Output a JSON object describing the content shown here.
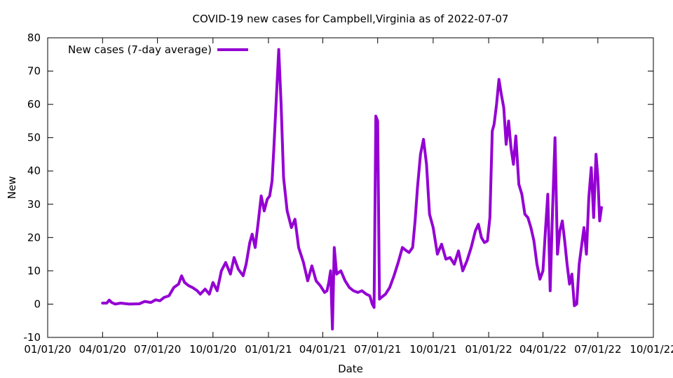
{
  "chart_data": {
    "type": "line",
    "title": "COVID-19 new cases for Campbell,Virginia as of 2022-07-07",
    "xlabel": "Date",
    "ylabel": "New",
    "xlim": [
      "2020-01-01",
      "2022-10-01"
    ],
    "ylim": [
      -10,
      80
    ],
    "grid": false,
    "legend_position": "top-left",
    "x_ticks": [
      {
        "date": "2020-01-01",
        "label": "01/01/20"
      },
      {
        "date": "2020-04-01",
        "label": "04/01/20"
      },
      {
        "date": "2020-07-01",
        "label": "07/01/20"
      },
      {
        "date": "2020-10-01",
        "label": "10/01/20"
      },
      {
        "date": "2021-01-01",
        "label": "01/01/21"
      },
      {
        "date": "2021-04-01",
        "label": "04/01/21"
      },
      {
        "date": "2021-07-01",
        "label": "07/01/21"
      },
      {
        "date": "2021-10-01",
        "label": "10/01/21"
      },
      {
        "date": "2022-01-01",
        "label": "01/01/22"
      },
      {
        "date": "2022-04-01",
        "label": "04/01/22"
      },
      {
        "date": "2022-07-01",
        "label": "07/01/22"
      },
      {
        "date": "2022-10-01",
        "label": "10/01/22"
      }
    ],
    "y_ticks": [
      -10,
      0,
      10,
      20,
      30,
      40,
      50,
      60,
      70,
      80
    ],
    "series": [
      {
        "name": "New cases (7-day average)",
        "color": "#9400d3",
        "x": [
          "2020-04-01",
          "2020-04-08",
          "2020-04-12",
          "2020-04-16",
          "2020-04-22",
          "2020-05-01",
          "2020-05-15",
          "2020-06-01",
          "2020-06-10",
          "2020-06-20",
          "2020-06-28",
          "2020-07-05",
          "2020-07-12",
          "2020-07-20",
          "2020-07-28",
          "2020-08-05",
          "2020-08-10",
          "2020-08-15",
          "2020-08-22",
          "2020-08-28",
          "2020-09-05",
          "2020-09-10",
          "2020-09-18",
          "2020-09-25",
          "2020-10-01",
          "2020-10-08",
          "2020-10-15",
          "2020-10-22",
          "2020-10-30",
          "2020-11-05",
          "2020-11-12",
          "2020-11-20",
          "2020-11-25",
          "2020-12-01",
          "2020-12-05",
          "2020-12-10",
          "2020-12-15",
          "2020-12-20",
          "2020-12-25",
          "2020-12-30",
          "2021-01-03",
          "2021-01-07",
          "2021-01-10",
          "2021-01-14",
          "2021-01-18",
          "2021-01-22",
          "2021-01-26",
          "2021-02-01",
          "2021-02-08",
          "2021-02-14",
          "2021-02-20",
          "2021-02-28",
          "2021-03-07",
          "2021-03-14",
          "2021-03-21",
          "2021-03-28",
          "2021-04-04",
          "2021-04-08",
          "2021-04-11",
          "2021-04-14",
          "2021-04-17",
          "2021-04-20",
          "2021-04-24",
          "2021-05-01",
          "2021-05-08",
          "2021-05-15",
          "2021-05-22",
          "2021-05-29",
          "2021-06-05",
          "2021-06-12",
          "2021-06-18",
          "2021-06-22",
          "2021-06-25",
          "2021-06-28",
          "2021-07-01",
          "2021-07-04",
          "2021-07-07",
          "2021-07-14",
          "2021-07-21",
          "2021-07-28",
          "2021-08-04",
          "2021-08-11",
          "2021-08-18",
          "2021-08-22",
          "2021-08-28",
          "2021-09-01",
          "2021-09-05",
          "2021-09-10",
          "2021-09-15",
          "2021-09-20",
          "2021-09-25",
          "2021-10-01",
          "2021-10-08",
          "2021-10-15",
          "2021-10-22",
          "2021-10-29",
          "2021-11-05",
          "2021-11-12",
          "2021-11-19",
          "2021-11-26",
          "2021-12-03",
          "2021-12-10",
          "2021-12-15",
          "2021-12-20",
          "2021-12-25",
          "2021-12-30",
          "2022-01-03",
          "2022-01-07",
          "2022-01-10",
          "2022-01-14",
          "2022-01-18",
          "2022-01-22",
          "2022-01-26",
          "2022-01-30",
          "2022-02-03",
          "2022-02-07",
          "2022-02-11",
          "2022-02-15",
          "2022-02-20",
          "2022-02-25",
          "2022-03-02",
          "2022-03-07",
          "2022-03-12",
          "2022-03-17",
          "2022-03-22",
          "2022-03-27",
          "2022-04-01",
          "2022-04-05",
          "2022-04-09",
          "2022-04-13",
          "2022-04-17",
          "2022-04-21",
          "2022-04-25",
          "2022-04-29",
          "2022-05-03",
          "2022-05-07",
          "2022-05-11",
          "2022-05-15",
          "2022-05-19",
          "2022-05-23",
          "2022-05-27",
          "2022-05-31",
          "2022-06-04",
          "2022-06-08",
          "2022-06-12",
          "2022-06-16",
          "2022-06-20",
          "2022-06-24",
          "2022-06-28",
          "2022-07-01",
          "2022-07-04",
          "2022-07-07"
        ],
        "values": [
          0.3,
          0.3,
          1.2,
          0.5,
          0.0,
          0.3,
          0.0,
          0.1,
          0.8,
          0.5,
          1.3,
          1.0,
          2.0,
          2.5,
          5.0,
          6.0,
          8.5,
          6.5,
          5.5,
          5.0,
          4.0,
          3.0,
          4.5,
          3.0,
          6.5,
          4.0,
          10.0,
          12.5,
          9.0,
          14.0,
          10.5,
          8.5,
          12.0,
          18.5,
          21.0,
          17.0,
          24.5,
          32.5,
          28.0,
          31.5,
          32.5,
          37.0,
          47.0,
          62.0,
          76.5,
          60.0,
          38.0,
          28.0,
          23.0,
          25.5,
          17.0,
          12.5,
          7.0,
          11.5,
          7.0,
          5.5,
          3.5,
          4.0,
          6.5,
          10.0,
          -7.5,
          17.0,
          9.0,
          10.0,
          7.0,
          5.0,
          4.0,
          3.5,
          4.0,
          3.0,
          2.5,
          0.0,
          -1.0,
          56.5,
          55.0,
          1.5,
          2.0,
          3.0,
          5.0,
          8.5,
          12.5,
          17.0,
          16.0,
          15.5,
          17.0,
          25.0,
          35.0,
          45.0,
          49.5,
          42.0,
          27.0,
          23.0,
          15.0,
          18.0,
          13.5,
          14.0,
          12.0,
          16.0,
          10.0,
          13.0,
          17.0,
          22.0,
          24.0,
          20.0,
          18.5,
          19.0,
          26.0,
          52.0,
          54.0,
          60.0,
          67.5,
          63.0,
          59.0,
          48.0,
          55.0,
          47.0,
          42.0,
          50.5,
          36.0,
          33.0,
          27.0,
          26.0,
          23.0,
          19.0,
          12.0,
          7.5,
          10.0,
          22.0,
          33.0,
          4.0,
          29.0,
          50.0,
          15.0,
          22.0,
          25.0,
          19.0,
          12.0,
          6.0,
          9.0,
          -0.5,
          0.0,
          12.0,
          17.5,
          23.0,
          15.0,
          32.0,
          41.0,
          26.0,
          45.0,
          38.0,
          25.0,
          29.0
        ]
      }
    ]
  }
}
